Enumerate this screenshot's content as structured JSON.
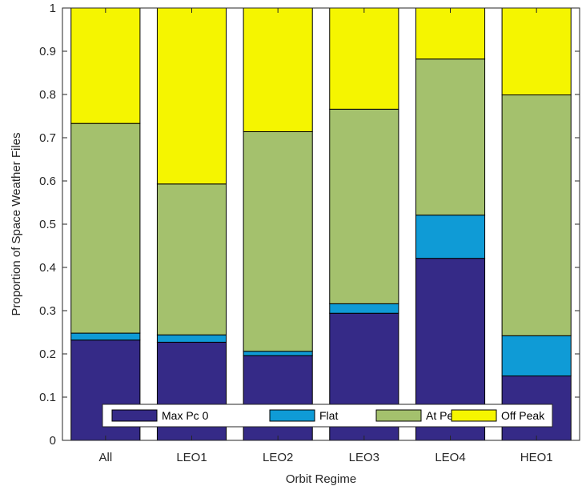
{
  "chart_data": {
    "type": "bar",
    "stacked": true,
    "categories": [
      "All",
      "LEO1",
      "LEO2",
      "LEO3",
      "LEO4",
      "HEO1"
    ],
    "series": [
      {
        "name": "Max Pc 0",
        "color": "#352a87",
        "values": [
          0.232,
          0.227,
          0.196,
          0.294,
          0.421,
          0.149
        ]
      },
      {
        "name": "Flat",
        "color": "#0f9bd6",
        "values": [
          0.016,
          0.017,
          0.01,
          0.022,
          0.1,
          0.093
        ]
      },
      {
        "name": "At Peak",
        "color": "#a4c16d",
        "values": [
          0.485,
          0.349,
          0.508,
          0.45,
          0.361,
          0.557
        ]
      },
      {
        "name": "Off Peak",
        "color": "#f5f500",
        "values": [
          0.267,
          0.407,
          0.286,
          0.234,
          0.118,
          0.201
        ]
      }
    ],
    "xlabel": "Orbit Regime",
    "ylabel": "Proportion of Space Weather Files",
    "ylim": [
      0,
      1
    ],
    "yticks": [
      "0",
      "0.1",
      "0.2",
      "0.3",
      "0.4",
      "0.5",
      "0.6",
      "0.7",
      "0.8",
      "0.9",
      "1"
    ],
    "grid": false,
    "legend": {
      "position": "bottom-center",
      "orientation": "horizontal"
    }
  }
}
